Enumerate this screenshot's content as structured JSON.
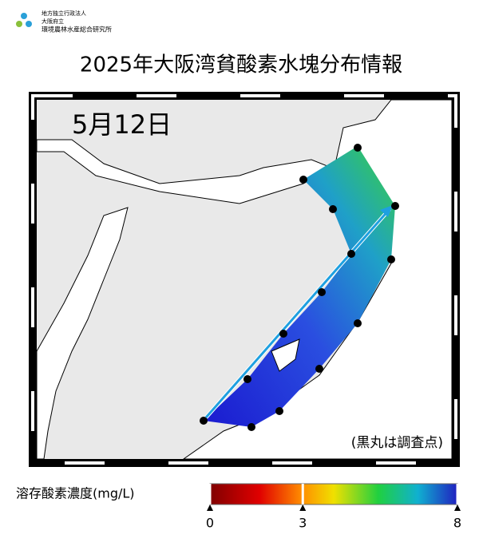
{
  "header": {
    "org": [
      "地方独立行政法人",
      "大阪府立",
      "環境農林水産総合研究所"
    ],
    "title": "2025年大阪湾貧酸素水塊分布情報"
  },
  "map": {
    "date": "5月12日",
    "note": "(黒丸は調査点)"
  },
  "colorbar": {
    "label": "溶存酸素濃度(mg/L)",
    "range": [
      0,
      8
    ],
    "ticks": [
      0,
      3,
      8
    ]
  }
}
